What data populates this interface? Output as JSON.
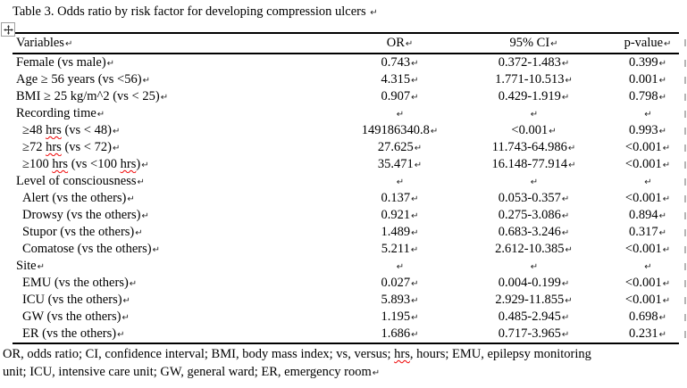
{
  "title": "Table 3. Odds ratio by risk factor for developing compression ulcers",
  "formatting_marks": {
    "paragraph_mark": "↵"
  },
  "spellcheck": {
    "misspelled_words": [
      "hrs"
    ]
  },
  "table": {
    "columns": [
      "Variables",
      "OR",
      "95% CI",
      "p-value"
    ],
    "rows": [
      {
        "label": "Female (vs male)",
        "or": "0.743",
        "ci": "0.372-1.483",
        "p": "0.399"
      },
      {
        "label": "Age ≥ 56 years (vs <56)",
        "or": "4.315",
        "ci": "1.771-10.513",
        "p": "0.001"
      },
      {
        "label": "BMI ≥ 25 kg/m^2 (vs < 25)",
        "or": "0.907",
        "ci": "0.429-1.919",
        "p": "0.798"
      },
      {
        "label": "Recording time",
        "or": "",
        "ci": "",
        "p": ""
      },
      {
        "label": "≥48 hrs (vs < 48)",
        "or": "149186340.8",
        "ci": "<0.001",
        "p": "0.993"
      },
      {
        "label": "≥72 hrs (vs < 72)",
        "or": "27.625",
        "ci": "11.743-64.986",
        "p": "<0.001"
      },
      {
        "label": "≥100 hrs (vs <100 hrs)",
        "or": "35.471",
        "ci": "16.148-77.914",
        "p": "<0.001"
      },
      {
        "label": "Level of consciousness",
        "or": "",
        "ci": "",
        "p": ""
      },
      {
        "label": "Alert (vs the others)",
        "or": "0.137",
        "ci": "0.053-0.357",
        "p": "<0.001"
      },
      {
        "label": "Drowsy (vs the others)",
        "or": "0.921",
        "ci": "0.275-3.086",
        "p": "0.894"
      },
      {
        "label": "Stupor (vs the others)",
        "or": "1.489",
        "ci": "0.683-3.246",
        "p": "0.317"
      },
      {
        "label": "Comatose (vs the others)",
        "or": "5.211",
        "ci": "2.612-10.385",
        "p": "<0.001"
      },
      {
        "label": "Site",
        "or": "",
        "ci": "",
        "p": ""
      },
      {
        "label": "EMU (vs the others)",
        "or": "0.027",
        "ci": "0.004-0.199",
        "p": "<0.001"
      },
      {
        "label": "ICU (vs the others)",
        "or": "5.893",
        "ci": "2.929-11.855",
        "p": "<0.001"
      },
      {
        "label": "GW (vs the others)",
        "or": "1.195",
        "ci": "0.485-2.945",
        "p": "0.698"
      },
      {
        "label": "ER (vs the others)",
        "or": "1.686",
        "ci": "0.717-3.965",
        "p": "0.231"
      }
    ]
  },
  "footnote_lines": [
    "OR, odds ratio; CI, confidence interval; BMI, body mass index; vs, versus; hrs, hours; EMU, epilepsy monitoring",
    "unit; ICU, intensive care unit; GW, general ward; ER, emergency room"
  ]
}
